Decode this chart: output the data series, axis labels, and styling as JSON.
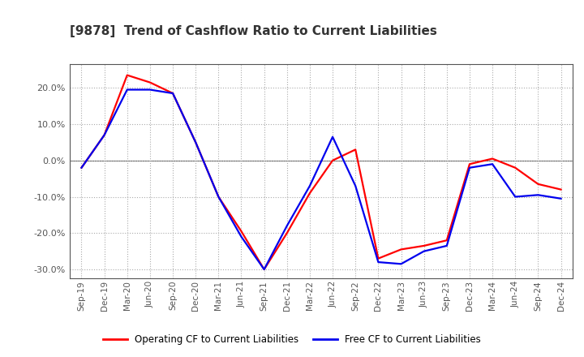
{
  "title": "[9878]  Trend of Cashflow Ratio to Current Liabilities",
  "x_labels": [
    "Sep-19",
    "Dec-19",
    "Mar-20",
    "Jun-20",
    "Sep-20",
    "Dec-20",
    "Mar-21",
    "Jun-21",
    "Sep-21",
    "Dec-21",
    "Mar-22",
    "Jun-22",
    "Sep-22",
    "Dec-22",
    "Mar-23",
    "Jun-23",
    "Sep-23",
    "Dec-23",
    "Mar-24",
    "Jun-24",
    "Sep-24",
    "Dec-24"
  ],
  "operating_cf": [
    -0.02,
    0.07,
    0.235,
    0.215,
    0.185,
    0.05,
    -0.1,
    -0.195,
    -0.3,
    -0.2,
    -0.09,
    0.0,
    0.03,
    -0.27,
    -0.245,
    -0.235,
    -0.22,
    -0.01,
    0.005,
    -0.02,
    -0.065,
    -0.08
  ],
  "free_cf": [
    -0.02,
    0.07,
    0.195,
    0.195,
    0.185,
    0.05,
    -0.1,
    -0.21,
    -0.3,
    -0.18,
    -0.07,
    0.065,
    -0.07,
    -0.28,
    -0.285,
    -0.25,
    -0.235,
    -0.02,
    -0.01,
    -0.1,
    -0.095,
    -0.105
  ],
  "operating_color": "#ff0000",
  "free_color": "#0000ee",
  "ylim": [
    -0.325,
    0.265
  ],
  "yticks": [
    -0.3,
    -0.2,
    -0.1,
    0.0,
    0.1,
    0.2
  ],
  "background_color": "#ffffff",
  "plot_bg_color": "#ffffff",
  "grid_color": "#aaaaaa",
  "legend_op_label": "Operating CF to Current Liabilities",
  "legend_free_label": "Free CF to Current Liabilities",
  "line_width": 1.6,
  "title_color": "#333333",
  "axis_color": "#555555",
  "spine_color": "#555555"
}
